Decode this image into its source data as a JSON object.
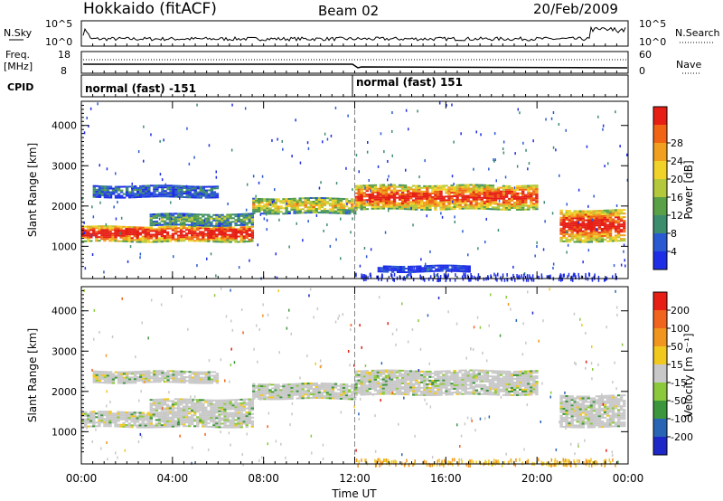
{
  "header": {
    "station": "Hokkaido (fitACF)",
    "beam": "Beam 02",
    "date": "20/Feb/2009"
  },
  "noise_panel": {
    "left_label": "N.Sky",
    "right_label": "N.Search",
    "left_ticks": [
      "10^5",
      "10^0"
    ],
    "right_ticks": [
      "10^5",
      "10^0"
    ],
    "line_color": "#000000"
  },
  "freq_panel": {
    "left_label_1": "Freq.",
    "left_label_2": "[MHz]",
    "right_label": "Nave",
    "left_ticks": [
      "18",
      "8"
    ],
    "right_ticks": [
      "60",
      "0"
    ]
  },
  "cpid_panel": {
    "label": "CPID",
    "segments": [
      {
        "text": "normal (fast) -151",
        "start_hour": 0
      },
      {
        "text": "normal (fast) 151",
        "start_hour": 12
      }
    ]
  },
  "chart_data": [
    {
      "type": "heatmap",
      "name": "power",
      "ylabel": "Slant Range [km]",
      "xlabel": "Time UT",
      "x_ticks": [
        "00:00",
        "04:00",
        "08:00",
        "12:00",
        "16:00",
        "20:00",
        "00:00"
      ],
      "xlim_hours": [
        0,
        24
      ],
      "y_ticks": [
        1000,
        2000,
        3000,
        4000
      ],
      "ylim": [
        200,
        4600
      ],
      "colorbar": {
        "label": "Power [dB]",
        "ticks": [
          "4",
          "8",
          "12",
          "16",
          "20",
          "24",
          "28"
        ],
        "colors": [
          "#1e2ee6",
          "#2a5ad2",
          "#3c8c6e",
          "#5aa046",
          "#b4c83c",
          "#f0d228",
          "#f0a01e",
          "#f06414",
          "#e61e14"
        ]
      },
      "bands": [
        {
          "t0": 0,
          "t1": 7.5,
          "r0": 1100,
          "r1": 1500,
          "level": 0.85
        },
        {
          "t0": 3,
          "t1": 7.5,
          "r0": 1500,
          "r1": 1800,
          "level": 0.3
        },
        {
          "t0": 0.5,
          "t1": 6,
          "r0": 2200,
          "r1": 2500,
          "level": 0.15
        },
        {
          "t0": 7.5,
          "t1": 12,
          "r0": 1800,
          "r1": 2200,
          "level": 0.5
        },
        {
          "t0": 12,
          "t1": 20,
          "r0": 1900,
          "r1": 2500,
          "level": 0.75
        },
        {
          "t0": 21,
          "t1": 23.8,
          "r0": 1100,
          "r1": 1900,
          "level": 0.8
        },
        {
          "t0": 13,
          "t1": 17,
          "r0": 350,
          "r1": 500,
          "level": 0.05
        }
      ]
    },
    {
      "type": "heatmap",
      "name": "velocity",
      "ylabel": "Slant Range [km]",
      "xlabel": "Time UT",
      "x_ticks": [
        "00:00",
        "04:00",
        "08:00",
        "12:00",
        "16:00",
        "20:00",
        "00:00"
      ],
      "xlim_hours": [
        0,
        24
      ],
      "y_ticks": [
        1000,
        2000,
        3000,
        4000
      ],
      "ylim": [
        200,
        4600
      ],
      "colorbar": {
        "label": "Velocity [m s⁻¹]",
        "ticks": [
          "200",
          "100",
          "50",
          "15",
          "-15",
          "-50",
          "-100",
          "-200"
        ],
        "colors": [
          "#1e28c8",
          "#2a64b4",
          "#3c963c",
          "#8cc83c",
          "#c8c8c8",
          "#f0c81e",
          "#f0961e",
          "#f0641e",
          "#e61e14"
        ]
      },
      "bands": [
        {
          "t0": 0,
          "t1": 7.5,
          "r0": 1100,
          "r1": 1500
        },
        {
          "t0": 3,
          "t1": 7.5,
          "r0": 1500,
          "r1": 1800
        },
        {
          "t0": 0.5,
          "t1": 6,
          "r0": 2200,
          "r1": 2500
        },
        {
          "t0": 7.5,
          "t1": 12,
          "r0": 1800,
          "r1": 2200
        },
        {
          "t0": 12,
          "t1": 20,
          "r0": 1900,
          "r1": 2500
        },
        {
          "t0": 21,
          "t1": 23.8,
          "r0": 1100,
          "r1": 1900
        }
      ]
    }
  ]
}
